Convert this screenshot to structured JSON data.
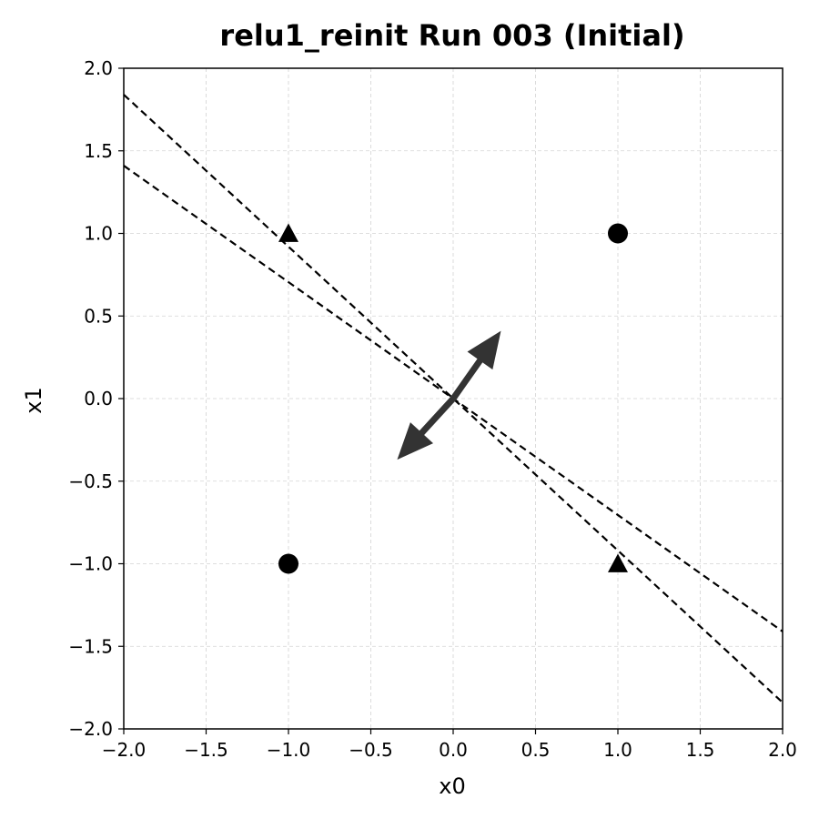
{
  "chart_data": {
    "type": "scatter",
    "title": "relu1_reinit Run 003 (Initial)",
    "xlabel": "x0",
    "ylabel": "x1",
    "xlim": [
      -2.0,
      2.0
    ],
    "ylim": [
      -2.0,
      2.0
    ],
    "xticks": [
      -2.0,
      -1.5,
      -1.0,
      -0.5,
      0.0,
      0.5,
      1.0,
      1.5,
      2.0
    ],
    "yticks": [
      -2.0,
      -1.5,
      -1.0,
      -0.5,
      0.0,
      0.5,
      1.0,
      1.5,
      2.0
    ],
    "xtick_labels": [
      "−2.0",
      "−1.5",
      "−1.0",
      "−0.5",
      "0.0",
      "0.5",
      "1.0",
      "1.5",
      "2.0"
    ],
    "ytick_labels": [
      "−2.0",
      "−1.5",
      "−1.0",
      "−0.5",
      "0.0",
      "0.5",
      "1.0",
      "1.5",
      "2.0"
    ],
    "grid": true,
    "points": [
      {
        "x": 1,
        "y": 1,
        "marker": "circle"
      },
      {
        "x": -1,
        "y": -1,
        "marker": "circle"
      },
      {
        "x": -1,
        "y": 1,
        "marker": "triangle"
      },
      {
        "x": 1,
        "y": -1,
        "marker": "triangle"
      }
    ],
    "boundary_lines": [
      {
        "x_start": -2.0,
        "y_start": 1.84,
        "x_end": 2.0,
        "y_end": -1.84,
        "style": "dashed"
      },
      {
        "x_start": -2.0,
        "y_start": 1.41,
        "x_end": 2.0,
        "y_end": -1.41,
        "style": "dashed"
      }
    ],
    "arrows": [
      {
        "x_start": 0.0,
        "y_start": 0.0,
        "x_end": 0.29,
        "y_end": 0.41
      },
      {
        "x_start": 0.0,
        "y_start": 0.0,
        "x_end": -0.34,
        "y_end": -0.37
      }
    ],
    "colors": {
      "marker": "#000000",
      "boundary": "#000000",
      "arrow": "#333333",
      "grid": "#d3d3d3"
    }
  }
}
